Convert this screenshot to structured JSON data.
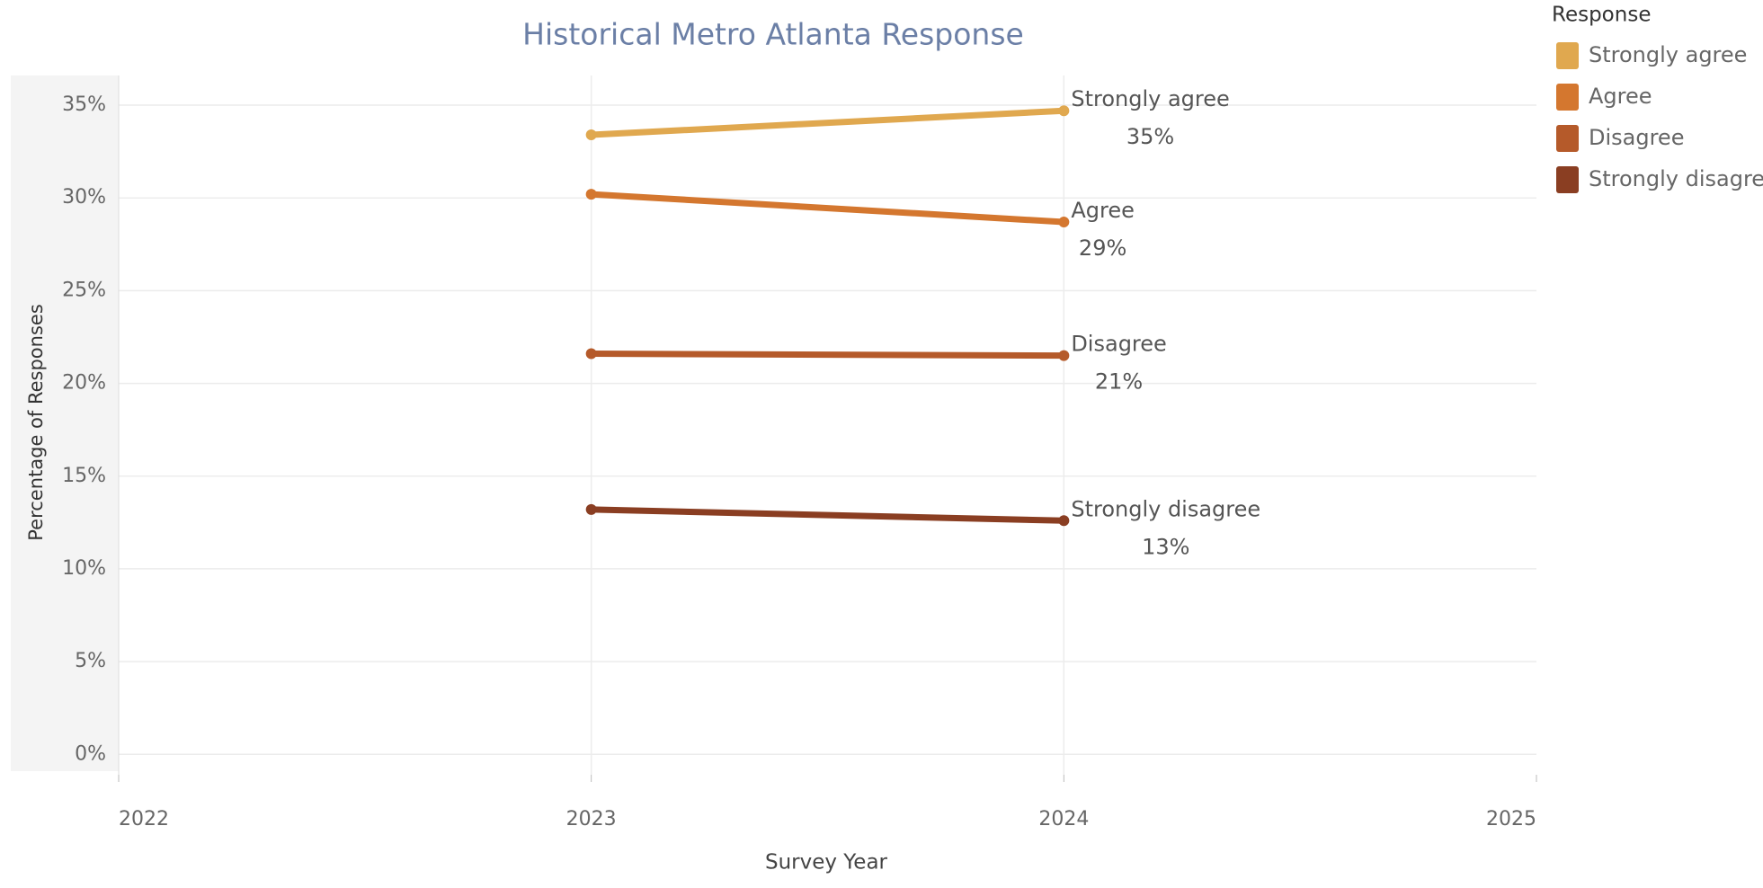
{
  "chart_data": {
    "type": "line",
    "title": "Historical Metro Atlanta Response",
    "x_label": "Survey Year",
    "y_label": "Percentage of Responses",
    "legend_title": "Response",
    "legend": "right",
    "grid": true,
    "x": [
      2023,
      2024
    ],
    "xlim": [
      2022,
      2025
    ],
    "xticks": [
      2022,
      2023,
      2024,
      2025
    ],
    "ylim": [
      -1.1,
      36.6
    ],
    "yticks": [
      {
        "value": 0,
        "label": "0%"
      },
      {
        "value": 5,
        "label": "5%"
      },
      {
        "value": 10,
        "label": "10%"
      },
      {
        "value": 15,
        "label": "15%"
      },
      {
        "value": 20,
        "label": "20%"
      },
      {
        "value": 25,
        "label": "25%"
      },
      {
        "value": 30,
        "label": "30%"
      },
      {
        "value": 35,
        "label": "35%"
      }
    ],
    "series": [
      {
        "name": "Strongly agree",
        "color": "#e0a84f",
        "values": [
          33.4,
          34.7
        ],
        "value_labels": [
          null,
          "35%"
        ]
      },
      {
        "name": "Agree",
        "color": "#d4772f",
        "values": [
          30.2,
          28.7
        ],
        "value_labels": [
          null,
          "29%"
        ]
      },
      {
        "name": "Disagree",
        "color": "#b55a2a",
        "values": [
          21.6,
          21.5
        ],
        "value_labels": [
          null,
          "21%"
        ]
      },
      {
        "name": "Strongly disagree",
        "color": "#8a3e22",
        "values": [
          13.2,
          12.6
        ],
        "value_labels": [
          null,
          "13%"
        ]
      }
    ]
  }
}
